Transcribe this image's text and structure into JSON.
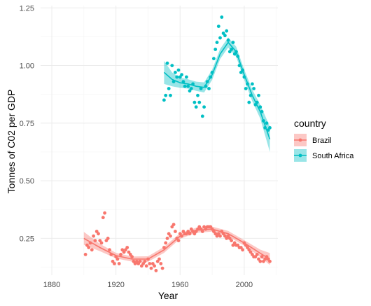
{
  "chart_data": {
    "type": "scatter",
    "title": "",
    "xlabel": "Year",
    "ylabel": "Tonnes of C02 per GDP",
    "xlim": [
      1873,
      2021
    ],
    "ylim": [
      0.09,
      1.26
    ],
    "x_ticks": [
      1880,
      1920,
      1960,
      2000
    ],
    "x_tick_labels": [
      "1880",
      "1920",
      "1960",
      "2000"
    ],
    "y_ticks": [
      0.25,
      0.5,
      0.75,
      1.0,
      1.25
    ],
    "y_tick_labels": [
      "0.25",
      "0.50",
      "0.75",
      "1.00",
      "1.25"
    ],
    "grid": true,
    "legend": {
      "title": "country",
      "placement": "right"
    },
    "smooth": {
      "method": "loess",
      "confidence_band": true
    },
    "series": [
      {
        "name": "Brazil",
        "color": "#F8766D",
        "points": [
          [
            1901,
            0.18
          ],
          [
            1902,
            0.22
          ],
          [
            1903,
            0.21
          ],
          [
            1904,
            0.23
          ],
          [
            1905,
            0.2
          ],
          [
            1906,
            0.26
          ],
          [
            1907,
            0.24
          ],
          [
            1908,
            0.28
          ],
          [
            1909,
            0.27
          ],
          [
            1910,
            0.24
          ],
          [
            1911,
            0.23
          ],
          [
            1912,
            0.34
          ],
          [
            1913,
            0.36
          ],
          [
            1914,
            0.24
          ],
          [
            1915,
            0.25
          ],
          [
            1916,
            0.2
          ],
          [
            1917,
            0.18
          ],
          [
            1918,
            0.15
          ],
          [
            1919,
            0.14
          ],
          [
            1920,
            0.17
          ],
          [
            1921,
            0.16
          ],
          [
            1922,
            0.14
          ],
          [
            1923,
            0.18
          ],
          [
            1924,
            0.2
          ],
          [
            1925,
            0.19
          ],
          [
            1926,
            0.2
          ],
          [
            1927,
            0.21
          ],
          [
            1928,
            0.19
          ],
          [
            1929,
            0.18
          ],
          [
            1930,
            0.17
          ],
          [
            1931,
            0.15
          ],
          [
            1932,
            0.14
          ],
          [
            1933,
            0.15
          ],
          [
            1934,
            0.14
          ],
          [
            1935,
            0.15
          ],
          [
            1936,
            0.13
          ],
          [
            1937,
            0.14
          ],
          [
            1938,
            0.15
          ],
          [
            1939,
            0.13
          ],
          [
            1940,
            0.16
          ],
          [
            1941,
            0.14
          ],
          [
            1942,
            0.12
          ],
          [
            1943,
            0.14
          ],
          [
            1944,
            0.13
          ],
          [
            1945,
            0.11
          ],
          [
            1946,
            0.15
          ],
          [
            1947,
            0.16
          ],
          [
            1948,
            0.14
          ],
          [
            1949,
            0.12
          ],
          [
            1950,
            0.21
          ],
          [
            1951,
            0.23
          ],
          [
            1952,
            0.25
          ],
          [
            1953,
            0.27
          ],
          [
            1954,
            0.26
          ],
          [
            1955,
            0.3
          ],
          [
            1956,
            0.31
          ],
          [
            1957,
            0.28
          ],
          [
            1958,
            0.25
          ],
          [
            1959,
            0.24
          ],
          [
            1960,
            0.27
          ],
          [
            1961,
            0.26
          ],
          [
            1962,
            0.28
          ],
          [
            1963,
            0.27
          ],
          [
            1964,
            0.27
          ],
          [
            1965,
            0.28
          ],
          [
            1966,
            0.27
          ],
          [
            1967,
            0.29
          ],
          [
            1968,
            0.28
          ],
          [
            1969,
            0.27
          ],
          [
            1970,
            0.28
          ],
          [
            1971,
            0.29
          ],
          [
            1972,
            0.3
          ],
          [
            1973,
            0.29
          ],
          [
            1974,
            0.28
          ],
          [
            1975,
            0.3
          ],
          [
            1976,
            0.29
          ],
          [
            1977,
            0.3
          ],
          [
            1978,
            0.3
          ],
          [
            1979,
            0.3
          ],
          [
            1980,
            0.29
          ],
          [
            1981,
            0.28
          ],
          [
            1982,
            0.27
          ],
          [
            1983,
            0.26
          ],
          [
            1984,
            0.27
          ],
          [
            1985,
            0.26
          ],
          [
            1986,
            0.28
          ],
          [
            1987,
            0.27
          ],
          [
            1988,
            0.26
          ],
          [
            1989,
            0.25
          ],
          [
            1990,
            0.26
          ],
          [
            1991,
            0.25
          ],
          [
            1992,
            0.24
          ],
          [
            1993,
            0.22
          ],
          [
            1994,
            0.23
          ],
          [
            1995,
            0.22
          ],
          [
            1996,
            0.22
          ],
          [
            1997,
            0.21
          ],
          [
            1998,
            0.21
          ],
          [
            1999,
            0.2
          ],
          [
            2000,
            0.23
          ],
          [
            2001,
            0.22
          ],
          [
            2002,
            0.21
          ],
          [
            2003,
            0.2
          ],
          [
            2004,
            0.19
          ],
          [
            2005,
            0.18
          ],
          [
            2006,
            0.17
          ],
          [
            2007,
            0.17
          ],
          [
            2008,
            0.18
          ],
          [
            2009,
            0.16
          ],
          [
            2010,
            0.15
          ],
          [
            2011,
            0.17
          ],
          [
            2012,
            0.15
          ],
          [
            2013,
            0.16
          ],
          [
            2014,
            0.17
          ],
          [
            2015,
            0.16
          ],
          [
            2016,
            0.15
          ]
        ],
        "smooth_x": [
          1900,
          1910,
          1920,
          1930,
          1940,
          1950,
          1960,
          1970,
          1980,
          1990,
          2000,
          2010,
          2016
        ],
        "smooth_y": [
          0.25,
          0.21,
          0.175,
          0.16,
          0.16,
          0.2,
          0.26,
          0.285,
          0.29,
          0.27,
          0.23,
          0.185,
          0.16
        ],
        "band_halfwidth": [
          0.028,
          0.016,
          0.012,
          0.011,
          0.012,
          0.013,
          0.012,
          0.011,
          0.011,
          0.012,
          0.012,
          0.016,
          0.026
        ]
      },
      {
        "name": "South Africa",
        "color": "#00BFC4",
        "points": [
          [
            1950,
            0.85
          ],
          [
            1951,
            0.87
          ],
          [
            1952,
            1.01
          ],
          [
            1953,
            0.9
          ],
          [
            1954,
            0.87
          ],
          [
            1955,
            1.0
          ],
          [
            1956,
            0.93
          ],
          [
            1957,
            0.97
          ],
          [
            1958,
            0.95
          ],
          [
            1959,
            0.98
          ],
          [
            1960,
            0.95
          ],
          [
            1961,
            0.96
          ],
          [
            1962,
            0.93
          ],
          [
            1963,
            0.91
          ],
          [
            1964,
            0.95
          ],
          [
            1965,
            0.91
          ],
          [
            1966,
            0.89
          ],
          [
            1967,
            0.9
          ],
          [
            1968,
            0.92
          ],
          [
            1969,
            0.84
          ],
          [
            1970,
            0.82
          ],
          [
            1971,
            0.87
          ],
          [
            1972,
            0.84
          ],
          [
            1973,
            0.9
          ],
          [
            1974,
            0.78
          ],
          [
            1975,
            0.82
          ],
          [
            1976,
            0.91
          ],
          [
            1977,
            0.93
          ],
          [
            1978,
            0.9
          ],
          [
            1979,
            0.95
          ],
          [
            1980,
            0.97
          ],
          [
            1981,
            1.03
          ],
          [
            1982,
            1.07
          ],
          [
            1983,
            1.1
          ],
          [
            1984,
            1.17
          ],
          [
            1985,
            1.12
          ],
          [
            1986,
            1.21
          ],
          [
            1987,
            1.14
          ],
          [
            1988,
            1.13
          ],
          [
            1989,
            1.15
          ],
          [
            1990,
            1.11
          ],
          [
            1991,
            1.06
          ],
          [
            1992,
            1.07
          ],
          [
            1993,
            1.1
          ],
          [
            1994,
            1.05
          ],
          [
            1995,
            1.06
          ],
          [
            1996,
            1.04
          ],
          [
            1997,
            1.0
          ],
          [
            1998,
            0.97
          ],
          [
            1999,
            0.98
          ],
          [
            2000,
            0.95
          ],
          [
            2001,
            0.9
          ],
          [
            2002,
            0.92
          ],
          [
            2003,
            0.84
          ],
          [
            2004,
            0.87
          ],
          [
            2005,
            0.92
          ],
          [
            2006,
            0.9
          ],
          [
            2007,
            0.83
          ],
          [
            2008,
            0.84
          ],
          [
            2009,
            0.87
          ],
          [
            2010,
            0.82
          ],
          [
            2011,
            0.8
          ],
          [
            2012,
            0.76
          ],
          [
            2013,
            0.73
          ],
          [
            2014,
            0.75
          ],
          [
            2015,
            0.72
          ],
          [
            2016,
            0.73
          ]
        ],
        "smooth_x": [
          1950,
          1955,
          1960,
          1965,
          1970,
          1975,
          1980,
          1985,
          1990,
          1995,
          2000,
          2005,
          2010,
          2016
        ],
        "smooth_y": [
          0.97,
          0.94,
          0.925,
          0.92,
          0.91,
          0.905,
          0.96,
          1.05,
          1.1,
          1.06,
          0.96,
          0.87,
          0.8,
          0.68
        ],
        "band_halfwidth": [
          0.05,
          0.03,
          0.022,
          0.02,
          0.02,
          0.022,
          0.022,
          0.022,
          0.022,
          0.022,
          0.022,
          0.025,
          0.03,
          0.055
        ]
      }
    ]
  }
}
